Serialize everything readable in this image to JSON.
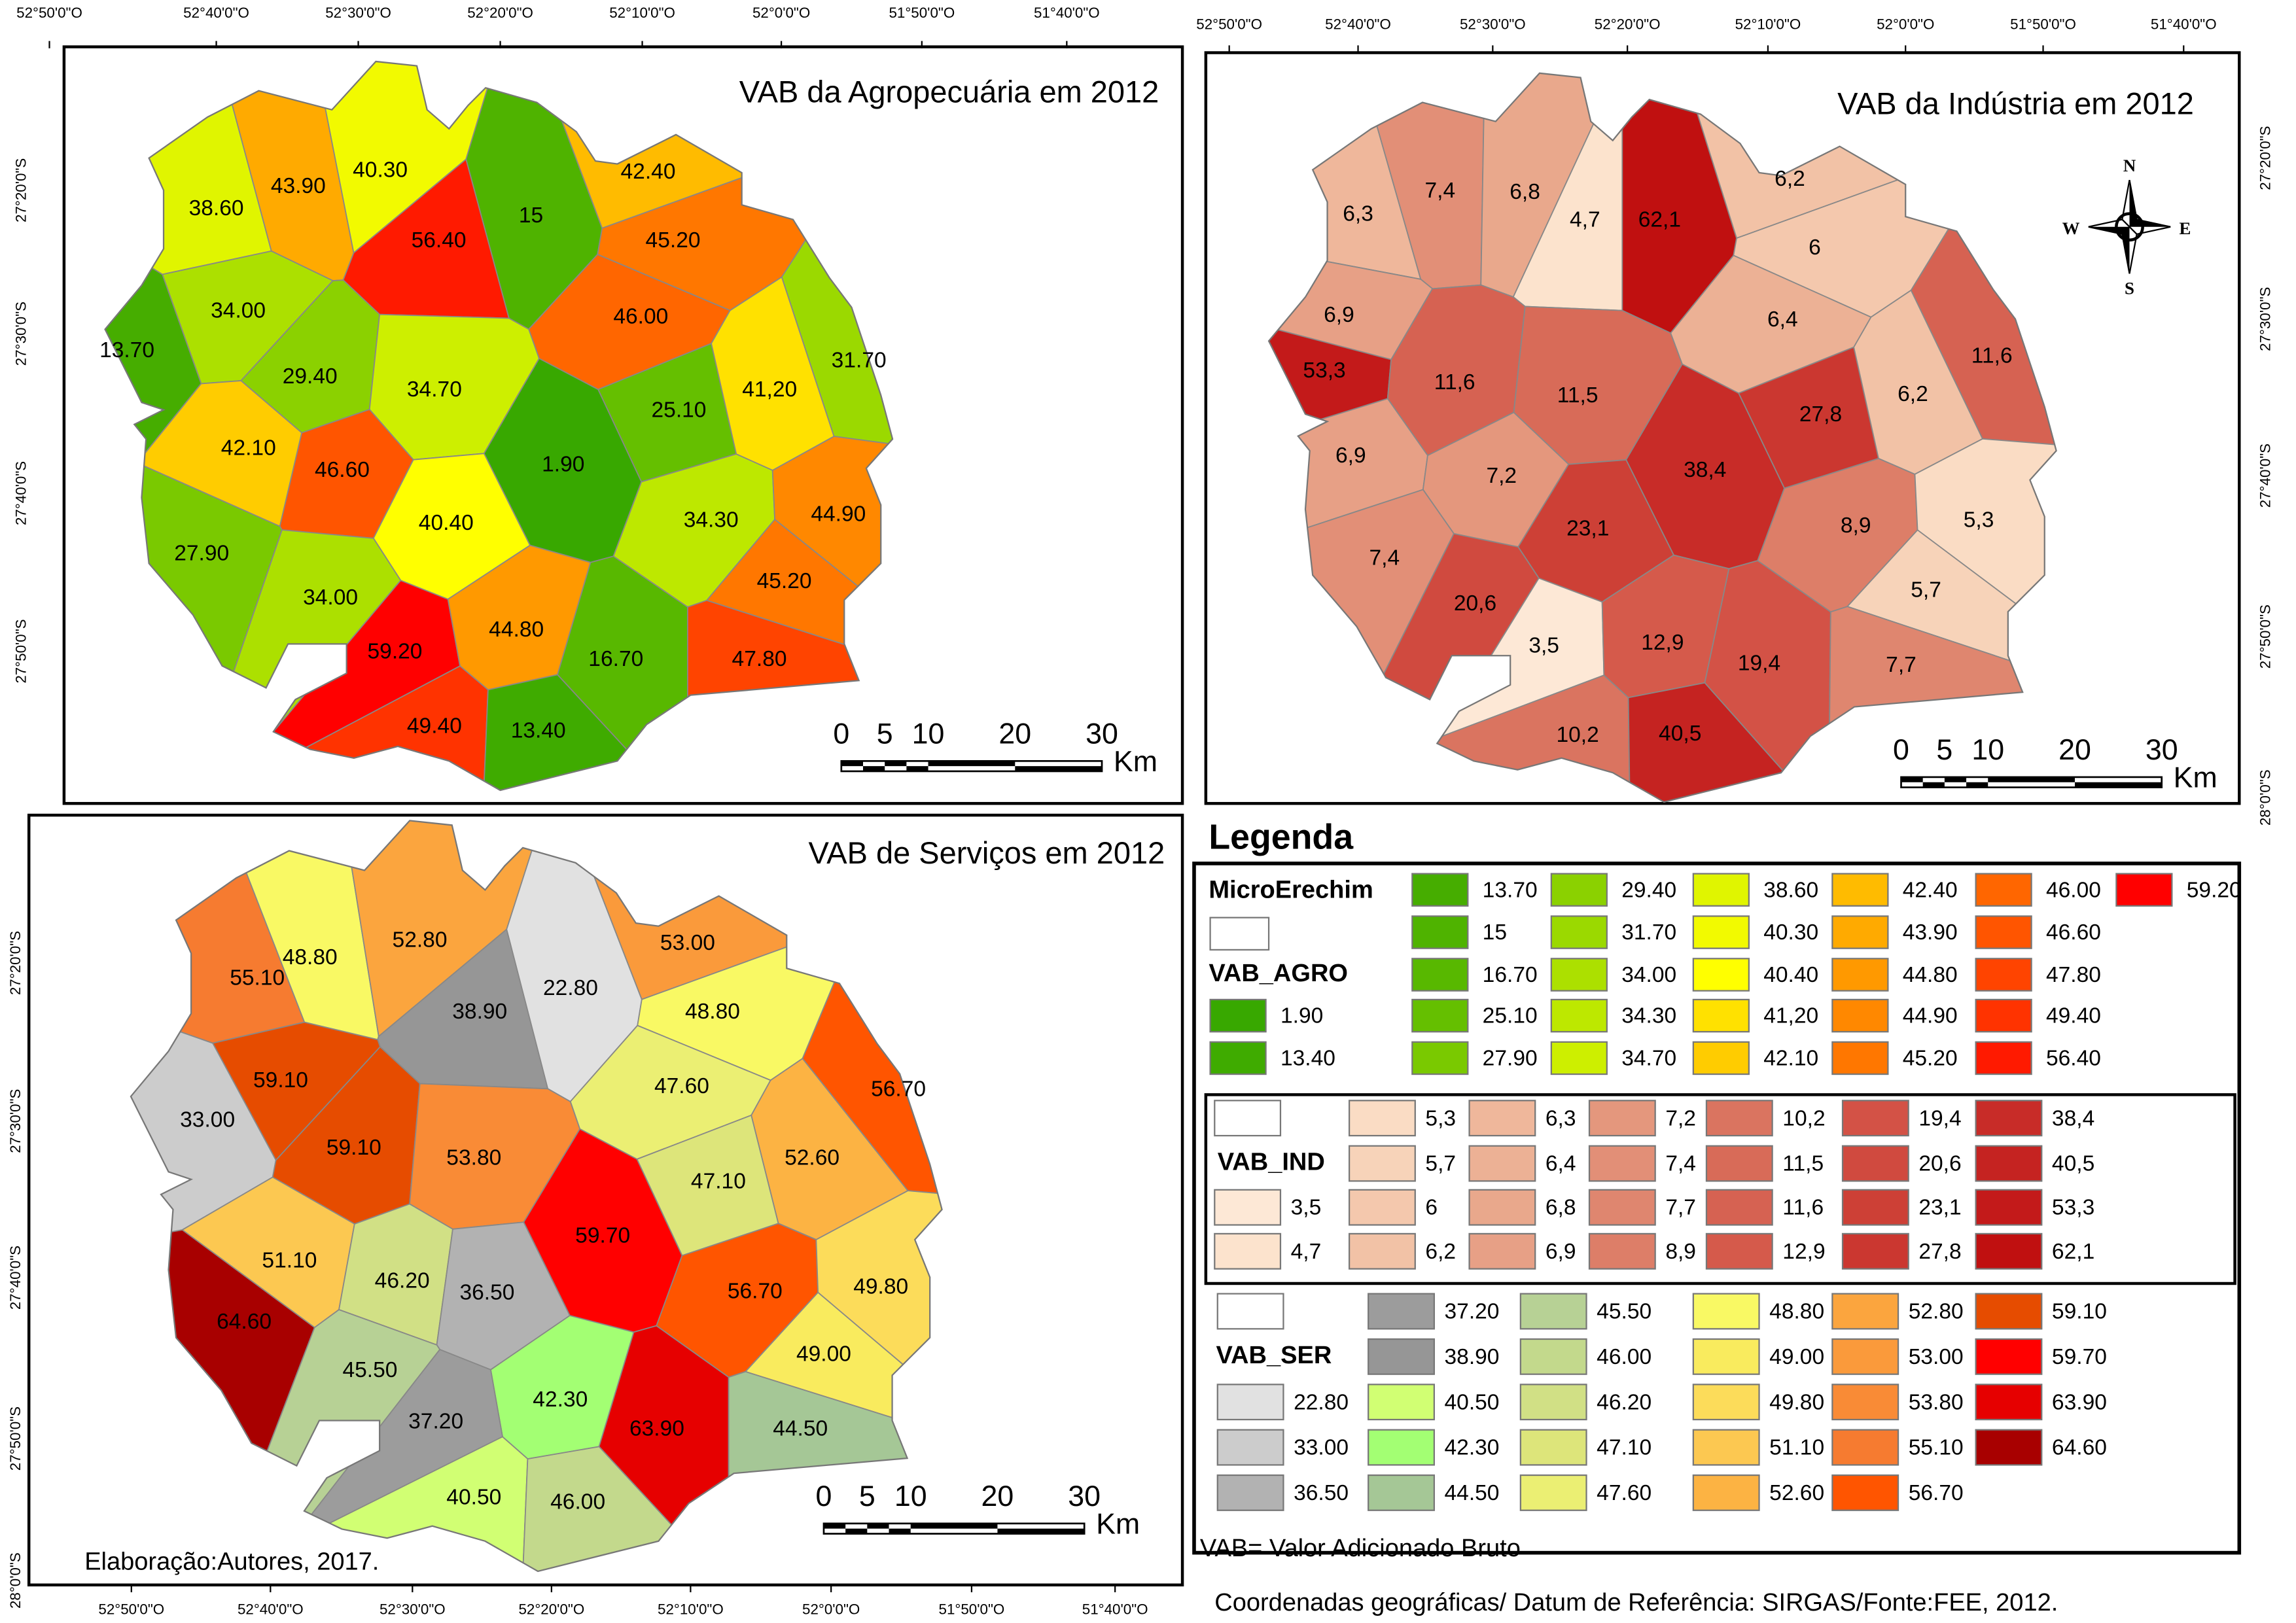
{
  "maps": {
    "agro": {
      "title": "VAB da Agropecuária em 2012",
      "values": [
        "38.60",
        "43.90",
        "40.30",
        "56.40",
        "15",
        "42.40",
        "45.20",
        "34.00",
        "13.70",
        "46.00",
        "29.40",
        "34.70",
        "41,20",
        "31.70",
        "25.10",
        "42.10",
        "46.60",
        "1.90",
        "40.40",
        "34.30",
        "44.90",
        "27.90",
        "34.00",
        "45.20",
        "59.20",
        "44.80",
        "16.70",
        "47.80",
        "49.40",
        "13.40"
      ]
    },
    "ind": {
      "title": "VAB da Indústria em 2012",
      "values": [
        "6,3",
        "7,4",
        "6,8",
        "4,7",
        "62,1",
        "6,2",
        "6",
        "6,9",
        "6,4",
        "53,3",
        "11,6",
        "11,5",
        "11,6",
        "27,8",
        "6,2",
        "6,9",
        "7,2",
        "38,4",
        "23,1",
        "8,9",
        "5,3",
        "7,4",
        "20,6",
        "5,7",
        "3,5",
        "12,9",
        "19,4",
        "7,7",
        "10,2",
        "40,5"
      ]
    },
    "ser": {
      "title": "VAB de Serviços em 2012",
      "values": [
        "48.80",
        "52.80",
        "38.90",
        "22.80",
        "53.00",
        "55.10",
        "48.80",
        "59.10",
        "33.00",
        "47.60",
        "56.70",
        "59.10",
        "53.80",
        "47.10",
        "52.60",
        "51.10",
        "46.20",
        "59.70",
        "56.70",
        "49.80",
        "64.60",
        "36.50",
        "49.00",
        "45.50",
        "42.30",
        "63.90",
        "44.50",
        "37.20",
        "40.50",
        "46.00"
      ]
    }
  },
  "scale_bar": {
    "ticks": [
      "0",
      "5",
      "10",
      "20",
      "30"
    ],
    "unit": "Km"
  },
  "compass": {
    "n": "N",
    "s": "S",
    "e": "E",
    "w": "W"
  },
  "ticks": {
    "top_left": [
      "52°50'0\"O",
      "52°40'0\"O",
      "52°30'0\"O",
      "52°20'0\"O",
      "52°10'0\"O",
      "52°0'0\"O",
      "51°50'0\"O",
      "51°40'0\"O"
    ],
    "top_right": [
      "52°50'0\"O",
      "52°40'0\"O",
      "52°30'0\"O",
      "52°20'0\"O",
      "52°10'0\"O",
      "52°0'0\"O",
      "51°50'0\"O",
      "51°40'0\"O"
    ],
    "bottom": [
      "52°50'0\"O",
      "52°40'0\"O",
      "52°30'0\"O",
      "52°20'0\"O",
      "52°10'0\"O",
      "52°0'0\"O",
      "51°50'0\"O",
      "51°40'0\"O"
    ],
    "left_top": [
      "27°20'0\"S",
      "27°30'0\"S",
      "27°40'0\"S",
      "27°50'0\"S"
    ],
    "left_bottom": [
      "27°20'0\"S",
      "27°30'0\"S",
      "27°40'0\"S",
      "27°50'0\"S",
      "28°0'0\"S"
    ],
    "right": [
      "27°20'0\"S",
      "27°30'0\"S",
      "27°40'0\"S",
      "27°50'0\"S",
      "28°0'0\"S"
    ]
  },
  "credit": "Elaboração:Autores, 2017.",
  "legend": {
    "title": "Legenda",
    "layer": "MicroErechim",
    "agro_label": "VAB_AGRO",
    "ind_label": "VAB_IND",
    "ser_label": "VAB_SER",
    "agro": [
      [
        {
          "v": "1.90",
          "c": "#38a800"
        },
        {
          "v": "13.40",
          "c": "#3fab00"
        }
      ],
      [
        {
          "v": "13.70",
          "c": "#46ad00"
        },
        {
          "v": "15",
          "c": "#4fb300"
        },
        {
          "v": "16.70",
          "c": "#58b800"
        },
        {
          "v": "25.10",
          "c": "#65bf00"
        },
        {
          "v": "27.90",
          "c": "#7ac900"
        }
      ],
      [
        {
          "v": "29.40",
          "c": "#8bd100"
        },
        {
          "v": "31.70",
          "c": "#9bd900"
        },
        {
          "v": "34.00",
          "c": "#ace000"
        },
        {
          "v": "34.30",
          "c": "#bde800"
        },
        {
          "v": "34.70",
          "c": "#cdef00"
        }
      ],
      [
        {
          "v": "38.60",
          "c": "#e0f500"
        },
        {
          "v": "40.30",
          "c": "#f2fa00"
        },
        {
          "v": "40.40",
          "c": "#ffff00"
        },
        {
          "v": "41,20",
          "c": "#ffe100"
        },
        {
          "v": "42.10",
          "c": "#ffcc00"
        }
      ],
      [
        {
          "v": "42.40",
          "c": "#ffbb00"
        },
        {
          "v": "43.90",
          "c": "#ffaa00"
        },
        {
          "v": "44.80",
          "c": "#ff9900"
        },
        {
          "v": "44.90",
          "c": "#ff8800"
        },
        {
          "v": "45.20",
          "c": "#ff7700"
        }
      ],
      [
        {
          "v": "46.00",
          "c": "#ff6600"
        },
        {
          "v": "46.60",
          "c": "#ff5500"
        },
        {
          "v": "47.80",
          "c": "#ff4400"
        },
        {
          "v": "49.40",
          "c": "#ff3300"
        },
        {
          "v": "56.40",
          "c": "#ff1a00"
        }
      ],
      [
        {
          "v": "59.20",
          "c": "#ff0000"
        }
      ]
    ],
    "ind": [
      [
        {
          "v": "3,5",
          "c": "#fde8d6"
        },
        {
          "v": "4,7",
          "c": "#fce3cd"
        }
      ],
      [
        {
          "v": "5,3",
          "c": "#fadcc4"
        },
        {
          "v": "5,7",
          "c": "#f7d3b9"
        },
        {
          "v": "6",
          "c": "#f4c8ad"
        },
        {
          "v": "6,2",
          "c": "#f2c2a6"
        }
      ],
      [
        {
          "v": "6,3",
          "c": "#efb79b"
        },
        {
          "v": "6,4",
          "c": "#ecb195"
        },
        {
          "v": "6,8",
          "c": "#e9a88c"
        },
        {
          "v": "6,9",
          "c": "#e7a086"
        }
      ],
      [
        {
          "v": "7,2",
          "c": "#e4977d"
        },
        {
          "v": "7,4",
          "c": "#e28f77"
        },
        {
          "v": "7,7",
          "c": "#df866f"
        },
        {
          "v": "8,9",
          "c": "#dd7e68"
        }
      ],
      [
        {
          "v": "10,2",
          "c": "#da7460"
        },
        {
          "v": "11,5",
          "c": "#d86b58"
        },
        {
          "v": "11,6",
          "c": "#d66252"
        },
        {
          "v": "12,9",
          "c": "#d55a4b"
        }
      ],
      [
        {
          "v": "19,4",
          "c": "#d35246"
        },
        {
          "v": "20,6",
          "c": "#d04a3f"
        },
        {
          "v": "23,1",
          "c": "#cd4036"
        },
        {
          "v": "27,8",
          "c": "#cb3730"
        }
      ],
      [
        {
          "v": "38,4",
          "c": "#c82c28"
        },
        {
          "v": "40,5",
          "c": "#c52321"
        },
        {
          "v": "53,3",
          "c": "#c31a1a"
        },
        {
          "v": "62,1",
          "c": "#c01010"
        }
      ]
    ],
    "ser": [
      [
        {
          "v": "22.80",
          "c": "#e1e1e1"
        },
        {
          "v": "33.00",
          "c": "#cccccc"
        },
        {
          "v": "36.50",
          "c": "#b2b2b2"
        }
      ],
      [
        {
          "v": "37.20",
          "c": "#9c9c9c"
        },
        {
          "v": "38.90",
          "c": "#969696"
        },
        {
          "v": "40.50",
          "c": "#d1ff73"
        },
        {
          "v": "42.30",
          "c": "#a3ff73"
        },
        {
          "v": "44.50",
          "c": "#a5c796"
        }
      ],
      [
        {
          "v": "45.50",
          "c": "#b7d195"
        },
        {
          "v": "46.00",
          "c": "#c3d98c"
        },
        {
          "v": "46.20",
          "c": "#d1e085"
        },
        {
          "v": "47.10",
          "c": "#dde57a"
        },
        {
          "v": "47.60",
          "c": "#ebef73"
        }
      ],
      [
        {
          "v": "48.80",
          "c": "#f9f964"
        },
        {
          "v": "49.00",
          "c": "#f9eb5e"
        },
        {
          "v": "49.80",
          "c": "#fcdc5a"
        },
        {
          "v": "51.10",
          "c": "#fcc851"
        },
        {
          "v": "52.60",
          "c": "#fcb343"
        }
      ],
      [
        {
          "v": "52.80",
          "c": "#fba53e"
        },
        {
          "v": "53.00",
          "c": "#fa9a3b"
        },
        {
          "v": "53.80",
          "c": "#f98b36"
        },
        {
          "v": "55.10",
          "c": "#f67b30"
        },
        {
          "v": "56.70",
          "c": "#ff5500"
        }
      ],
      [
        {
          "v": "59.10",
          "c": "#e64c00"
        },
        {
          "v": "59.70",
          "c": "#ff0000"
        },
        {
          "v": "63.90",
          "c": "#e60000"
        },
        {
          "v": "64.60",
          "c": "#a80000"
        }
      ]
    ],
    "note": "VAB= Valor Adicionado Bruto",
    "source": "Coordenadas geográficas/ Datum de Referência: SIRGAS/Fonte:FEE, 2012."
  }
}
